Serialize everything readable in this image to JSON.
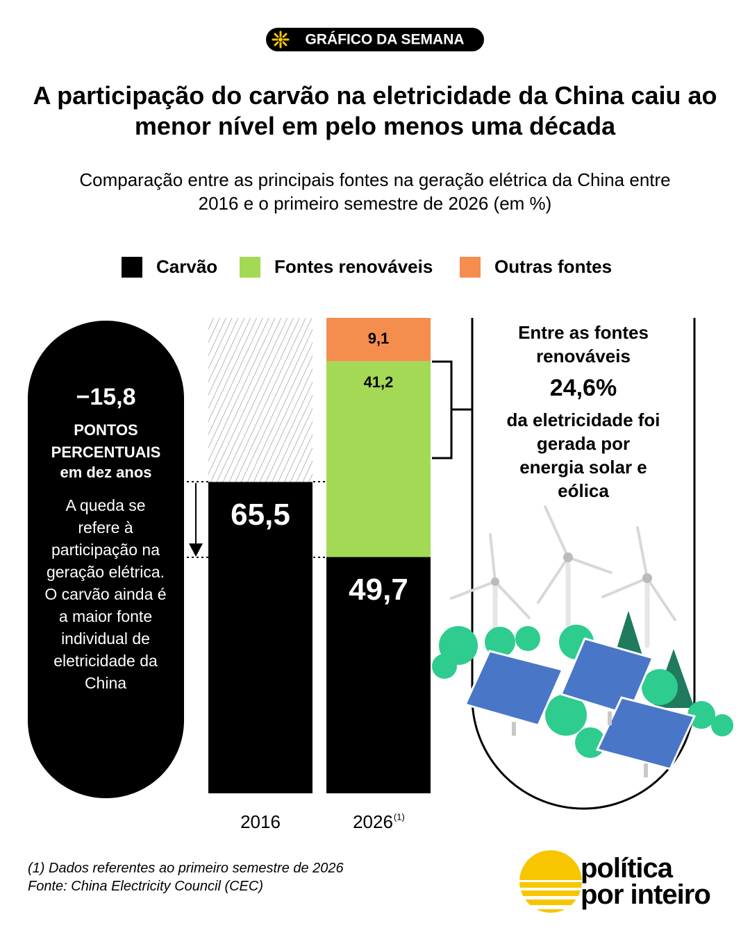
{
  "badge": "GRÁFICO DA SEMANA",
  "chart_data": {
    "type": "stacked-bar",
    "title": "A participação do carvão na eletricidade da China caiu ao menor nível em pelo menos uma década",
    "subtitle": "Comparação entre as principais fontes na geração elétrica da China entre 2016 e o primeiro semestre de 2026 (em %)",
    "categories": [
      "2016",
      "2026"
    ],
    "category_notes": [
      null,
      "(1)"
    ],
    "ylim": [
      0,
      100
    ],
    "series": [
      {
        "name": "Carvão",
        "color": "#000000",
        "values": [
          65.5,
          49.7
        ],
        "value_labels": [
          "65,5",
          "49,7"
        ]
      },
      {
        "name": "Fontes renováveis",
        "color": "#a3d955",
        "values": [
          null,
          41.2
        ],
        "value_labels": [
          null,
          "41,2"
        ]
      },
      {
        "name": "Outras fontes",
        "color": "#f58d4e",
        "values": [
          null,
          9.1
        ],
        "value_labels": [
          null,
          "9,1"
        ]
      }
    ],
    "annotations": {
      "change": "−15,8",
      "change_unit": "PONTOS PERCENTUAIS",
      "change_period": "em dez anos",
      "change_note": "A queda se refere à participação na geração elétrica. O carvão ainda é a maior fonte individual de eletricidade da China",
      "renewables_intro": "Entre as fontes renováveis",
      "renewables_share": "24,6%",
      "renewables_note": "da eletricidade foi gerada por energia solar e eólica"
    }
  },
  "footnote": "(1) Dados referentes ao primeiro semestre de 2026",
  "source": "Fonte: China Electricity Council (CEC)",
  "logo": [
    "política",
    "por inteiro"
  ]
}
